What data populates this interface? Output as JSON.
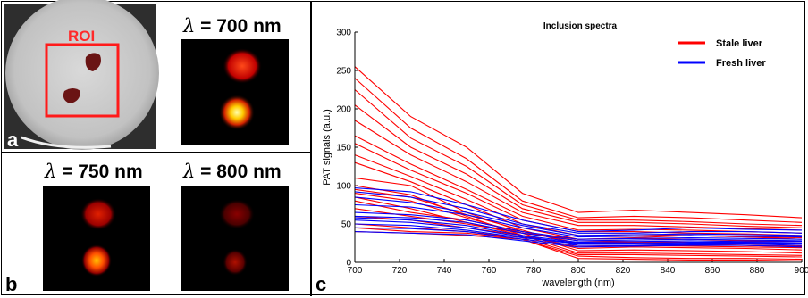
{
  "panels": {
    "a": {
      "letter": "a",
      "roi_label": "ROI"
    },
    "b": {
      "letter": "b"
    },
    "c": {
      "letter": "c"
    },
    "images": [
      {
        "symbol": "λ",
        "text": " = 700 nm"
      },
      {
        "symbol": "λ",
        "text": " = 750 nm"
      },
      {
        "symbol": "λ",
        "text": " = 800 nm"
      }
    ]
  },
  "chart_data": {
    "type": "line",
    "title": "Inclusion spectra",
    "xlabel": "wavelength (nm)",
    "ylabel": "PAT signals (a.u.)",
    "xlim": [
      700,
      900
    ],
    "ylim": [
      0,
      300
    ],
    "x_ticks": [
      700,
      720,
      740,
      760,
      780,
      800,
      820,
      840,
      860,
      880,
      900
    ],
    "y_ticks": [
      0,
      50,
      100,
      150,
      200,
      250,
      300
    ],
    "x": [
      700,
      725,
      750,
      775,
      800,
      825,
      850,
      875,
      900
    ],
    "grid": false,
    "legend_position": "top-right",
    "legend": [
      {
        "label": "Stale liver",
        "color": "#ff0000"
      },
      {
        "label": "Fresh liver",
        "color": "#0000ff"
      }
    ],
    "series": [
      {
        "group": "Stale liver",
        "color": "#ff0000",
        "values": [
          255,
          190,
          150,
          90,
          65,
          68,
          65,
          62,
          58
        ]
      },
      {
        "group": "Stale liver",
        "color": "#ff0000",
        "values": [
          240,
          175,
          135,
          80,
          58,
          60,
          58,
          55,
          52
        ]
      },
      {
        "group": "Stale liver",
        "color": "#ff0000",
        "values": [
          225,
          162,
          125,
          75,
          55,
          55,
          53,
          50,
          48
        ]
      },
      {
        "group": "Stale liver",
        "color": "#ff0000",
        "values": [
          205,
          150,
          115,
          70,
          52,
          52,
          50,
          47,
          45
        ]
      },
      {
        "group": "Stale liver",
        "color": "#ff0000",
        "values": [
          185,
          140,
          105,
          65,
          48,
          48,
          46,
          44,
          42
        ]
      },
      {
        "group": "Stale liver",
        "color": "#ff0000",
        "values": [
          165,
          128,
          95,
          60,
          42,
          43,
          42,
          40,
          38
        ]
      },
      {
        "group": "Stale liver",
        "color": "#ff0000",
        "values": [
          155,
          120,
          90,
          55,
          40,
          40,
          38,
          37,
          35
        ]
      },
      {
        "group": "Stale liver",
        "color": "#ff0000",
        "values": [
          140,
          112,
          82,
          50,
          35,
          36,
          35,
          33,
          32
        ]
      },
      {
        "group": "Stale liver",
        "color": "#ff0000",
        "values": [
          130,
          105,
          75,
          45,
          30,
          31,
          30,
          28,
          27
        ]
      },
      {
        "group": "Stale liver",
        "color": "#ff0000",
        "values": [
          110,
          100,
          65,
          40,
          25,
          26,
          24,
          22,
          21
        ]
      },
      {
        "group": "Stale liver",
        "color": "#ff0000",
        "values": [
          100,
          88,
          60,
          35,
          18,
          20,
          19,
          18,
          16
        ]
      },
      {
        "group": "Stale liver",
        "color": "#ff0000",
        "values": [
          95,
          85,
          62,
          42,
          22,
          22,
          21,
          20,
          19
        ]
      },
      {
        "group": "Stale liver",
        "color": "#ff0000",
        "values": [
          90,
          80,
          58,
          38,
          15,
          16,
          15,
          14,
          12
        ]
      },
      {
        "group": "Stale liver",
        "color": "#ff0000",
        "values": [
          85,
          70,
          52,
          35,
          12,
          12,
          11,
          10,
          9
        ]
      },
      {
        "group": "Stale liver",
        "color": "#ff0000",
        "values": [
          80,
          65,
          55,
          40,
          28,
          27,
          26,
          25,
          24
        ]
      },
      {
        "group": "Stale liver",
        "color": "#ff0000",
        "values": [
          70,
          60,
          50,
          38,
          30,
          32,
          35,
          33,
          30
        ]
      },
      {
        "group": "Stale liver",
        "color": "#ff0000",
        "values": [
          60,
          55,
          45,
          35,
          20,
          22,
          23,
          22,
          20
        ]
      },
      {
        "group": "Stale liver",
        "color": "#ff0000",
        "values": [
          50,
          45,
          40,
          32,
          10,
          10,
          9,
          8,
          7
        ]
      },
      {
        "group": "Stale liver",
        "color": "#ff0000",
        "values": [
          45,
          40,
          38,
          30,
          8,
          6,
          5,
          5,
          4
        ]
      },
      {
        "group": "Stale liver",
        "color": "#ff0000",
        "values": [
          40,
          38,
          35,
          30,
          5,
          4,
          3,
          3,
          2
        ]
      },
      {
        "group": "Fresh liver",
        "color": "#0000ff",
        "values": [
          97,
          92,
          75,
          55,
          40,
          42,
          45,
          43,
          42
        ]
      },
      {
        "group": "Fresh liver",
        "color": "#0000ff",
        "values": [
          92,
          85,
          70,
          50,
          38,
          38,
          40,
          40,
          38
        ]
      },
      {
        "group": "Fresh liver",
        "color": "#0000ff",
        "values": [
          85,
          78,
          65,
          48,
          35,
          36,
          37,
          36,
          35
        ]
      },
      {
        "group": "Fresh liver",
        "color": "#0000ff",
        "values": [
          75,
          72,
          62,
          45,
          33,
          34,
          35,
          34,
          33
        ]
      },
      {
        "group": "Fresh liver",
        "color": "#0000ff",
        "values": [
          65,
          62,
          55,
          40,
          30,
          31,
          32,
          31,
          30
        ]
      },
      {
        "group": "Fresh liver",
        "color": "#0000ff",
        "values": [
          60,
          58,
          52,
          38,
          28,
          29,
          30,
          29,
          28
        ]
      },
      {
        "group": "Fresh liver",
        "color": "#0000ff",
        "values": [
          58,
          55,
          48,
          35,
          26,
          27,
          28,
          27,
          27
        ]
      },
      {
        "group": "Fresh liver",
        "color": "#0000ff",
        "values": [
          55,
          52,
          45,
          33,
          25,
          25,
          26,
          26,
          25
        ]
      },
      {
        "group": "Fresh liver",
        "color": "#0000ff",
        "values": [
          50,
          48,
          42,
          32,
          24,
          24,
          25,
          25,
          24
        ]
      },
      {
        "group": "Fresh liver",
        "color": "#0000ff",
        "values": [
          45,
          44,
          40,
          30,
          22,
          22,
          23,
          24,
          22
        ]
      },
      {
        "group": "Fresh liver",
        "color": "#0000ff",
        "values": [
          40,
          38,
          36,
          28,
          20,
          21,
          22,
          22,
          20
        ]
      }
    ]
  }
}
